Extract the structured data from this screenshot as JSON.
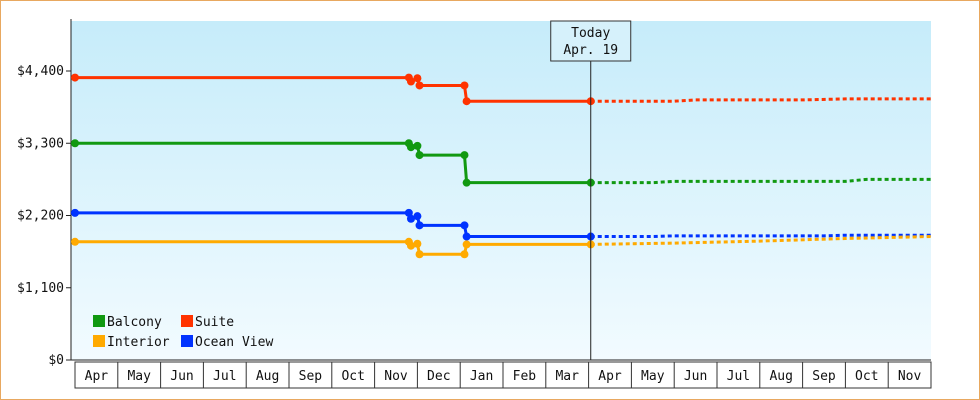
{
  "chart_data": {
    "type": "line",
    "title": "",
    "xlabel": "",
    "ylabel": "",
    "y_ticks": [
      "$0",
      "$1,100",
      "$2,200",
      "$3,300",
      "$4,400"
    ],
    "ylim": [
      0,
      4400
    ],
    "x_months": [
      "Apr",
      "May",
      "Jun",
      "Jul",
      "Aug",
      "Sep",
      "Oct",
      "Nov",
      "Dec",
      "Jan",
      "Feb",
      "Mar",
      "Apr",
      "May",
      "Jun",
      "Jul",
      "Aug",
      "Sep",
      "Oct",
      "Nov"
    ],
    "today_marker": {
      "line1": "Today",
      "line2": "Apr. 19",
      "x": 12.05
    },
    "grid": false,
    "legend_position": "bottom-left",
    "series": [
      {
        "name": "Suite",
        "color": "#ff3300",
        "points": [
          [
            0,
            4300
          ],
          [
            7.8,
            4300
          ],
          [
            7.85,
            4240
          ],
          [
            8.0,
            4290
          ],
          [
            8.05,
            4180
          ],
          [
            9.1,
            4180
          ],
          [
            9.15,
            3940
          ],
          [
            12.05,
            3940
          ]
        ],
        "forecast": [
          [
            12.05,
            3940
          ],
          [
            14.0,
            3940
          ],
          [
            14.5,
            3960
          ],
          [
            17.0,
            3960
          ],
          [
            18.0,
            3975
          ],
          [
            20.0,
            3975
          ]
        ]
      },
      {
        "name": "Balcony",
        "color": "#119911",
        "points": [
          [
            0,
            3300
          ],
          [
            7.8,
            3300
          ],
          [
            7.85,
            3240
          ],
          [
            8.0,
            3260
          ],
          [
            8.05,
            3120
          ],
          [
            9.1,
            3120
          ],
          [
            9.15,
            2700
          ],
          [
            12.05,
            2700
          ]
        ],
        "forecast": [
          [
            12.05,
            2700
          ],
          [
            13.5,
            2700
          ],
          [
            14.0,
            2720
          ],
          [
            18.0,
            2720
          ],
          [
            18.5,
            2750
          ],
          [
            20.0,
            2750
          ]
        ]
      },
      {
        "name": "Ocean View",
        "color": "#0033ff",
        "points": [
          [
            0,
            2240
          ],
          [
            7.8,
            2240
          ],
          [
            7.85,
            2150
          ],
          [
            8.0,
            2190
          ],
          [
            8.05,
            2050
          ],
          [
            9.1,
            2050
          ],
          [
            9.15,
            1880
          ],
          [
            12.05,
            1880
          ]
        ],
        "forecast": [
          [
            12.05,
            1880
          ],
          [
            13.5,
            1880
          ],
          [
            14.0,
            1890
          ],
          [
            17.5,
            1890
          ],
          [
            18.0,
            1900
          ],
          [
            20.0,
            1900
          ]
        ]
      },
      {
        "name": "Interior",
        "color": "#ffaa00",
        "points": [
          [
            0,
            1800
          ],
          [
            7.8,
            1800
          ],
          [
            7.85,
            1740
          ],
          [
            8.0,
            1770
          ],
          [
            8.05,
            1610
          ],
          [
            9.1,
            1610
          ],
          [
            9.15,
            1760
          ],
          [
            12.05,
            1760
          ]
        ],
        "forecast": [
          [
            12.05,
            1760
          ],
          [
            14.0,
            1780
          ],
          [
            16.0,
            1810
          ],
          [
            18.0,
            1850
          ],
          [
            20.0,
            1880
          ]
        ]
      }
    ],
    "legend": [
      {
        "label": "Balcony",
        "color": "#119911"
      },
      {
        "label": "Suite",
        "color": "#ff3300"
      },
      {
        "label": "Interior",
        "color": "#ffaa00"
      },
      {
        "label": "Ocean View",
        "color": "#0033ff"
      }
    ]
  }
}
